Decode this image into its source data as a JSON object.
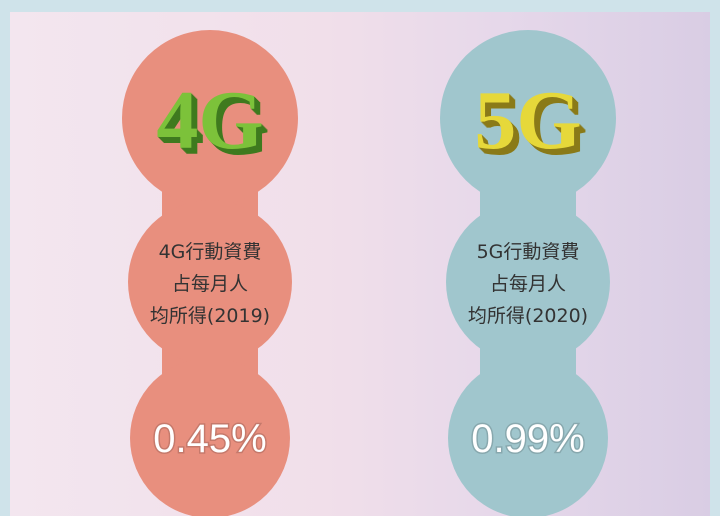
{
  "panels": [
    {
      "badge": "4G",
      "label_lines": [
        "4G行動資費",
        "占每月人",
        "均所得(2019)"
      ],
      "value": "0.45%"
    },
    {
      "badge": "5G",
      "label_lines": [
        "5G行動資費",
        "占每月人",
        "均所得(2020)"
      ],
      "value": "0.99%"
    }
  ]
}
